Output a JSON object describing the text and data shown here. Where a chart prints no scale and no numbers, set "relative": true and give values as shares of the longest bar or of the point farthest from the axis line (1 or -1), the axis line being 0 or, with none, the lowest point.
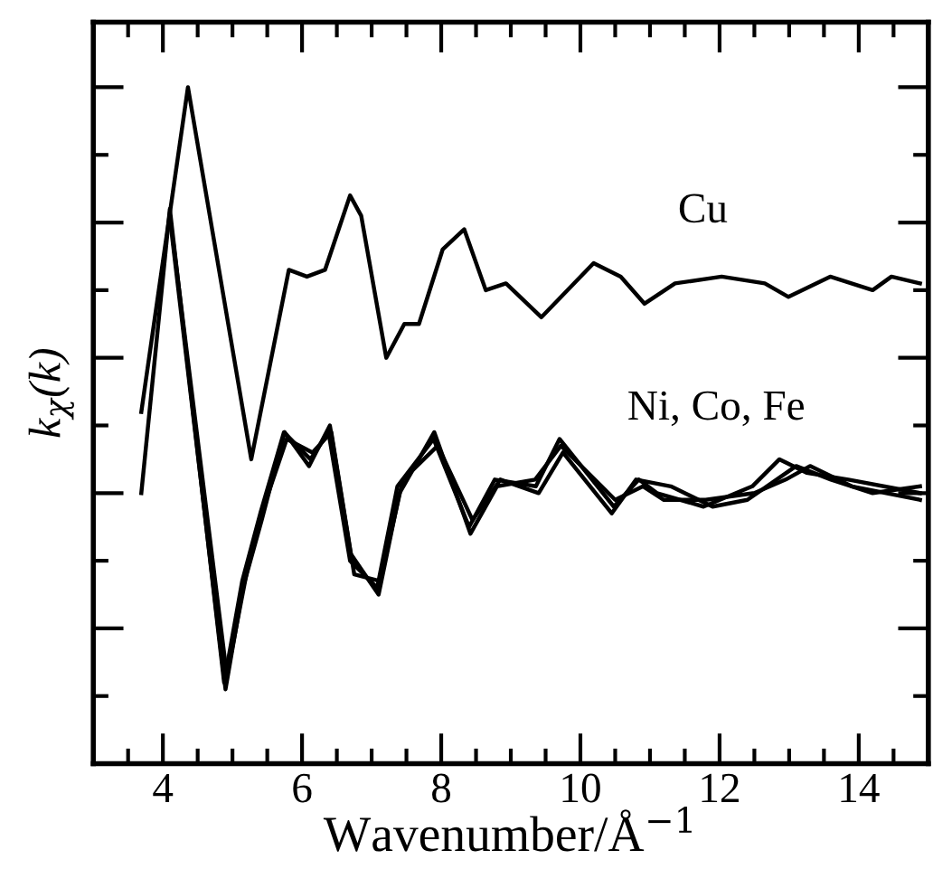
{
  "chart_data": {
    "type": "line",
    "relative": true,
    "xlabel": "Wavenumber/Å$^{−1}$",
    "ylabel": "k$_{χ}$(k)",
    "xlim": [
      3,
      15
    ],
    "xticks": [
      4,
      6,
      8,
      10,
      12,
      14
    ],
    "tick_labels": "x",
    "grid": false,
    "line_style": "solid",
    "marker": "none",
    "annotations": [
      "Cu",
      "Ni, Co, Fe"
    ],
    "series": [
      {
        "color": "#000000",
        "x": [
          3.69,
          4.36,
          5.27,
          5.81,
          6.07,
          6.33,
          6.69,
          6.85,
          7.21,
          7.47,
          7.68,
          8.02,
          8.33,
          8.64,
          8.93,
          9.44,
          10.19,
          10.58,
          10.92,
          11.36,
          12.03,
          12.65,
          12.99,
          13.59,
          14.2,
          14.47,
          14.88
        ],
        "values": [
          0.52,
          1.0,
          0.45,
          0.73,
          0.72,
          0.73,
          0.84,
          0.81,
          0.6,
          0.65,
          0.65,
          0.76,
          0.79,
          0.7,
          0.71,
          0.66,
          0.74,
          0.72,
          0.68,
          0.71,
          0.72,
          0.71,
          0.69,
          0.72,
          0.7,
          0.72,
          0.71
        ]
      },
      {
        "color": "#000000",
        "x": [
          3.69,
          4.1,
          4.88,
          5.14,
          5.4,
          5.74,
          6.12,
          6.38,
          6.69,
          7.08,
          7.37,
          7.89,
          8.4,
          8.77,
          9.36,
          9.7,
          10.48,
          10.84,
          11.1,
          11.77,
          12.47,
          12.86,
          13.25,
          13.85,
          14.88
        ],
        "values": [
          0.4,
          0.82,
          0.12,
          0.27,
          0.37,
          0.49,
          0.45,
          0.49,
          0.3,
          0.26,
          0.41,
          0.48,
          0.35,
          0.42,
          0.41,
          0.48,
          0.38,
          0.42,
          0.4,
          0.38,
          0.41,
          0.45,
          0.43,
          0.42,
          0.4
        ]
      },
      {
        "color": "#000000",
        "x": [
          4.12,
          4.9,
          5.15,
          5.42,
          5.75,
          6.1,
          6.4,
          6.7,
          7.1,
          7.4,
          7.9,
          8.42,
          8.8,
          9.35,
          9.72,
          10.5,
          10.9,
          11.2,
          11.8,
          12.5,
          12.95,
          13.3,
          13.9,
          14.88
        ],
        "values": [
          0.79,
          0.11,
          0.26,
          0.36,
          0.49,
          0.44,
          0.5,
          0.31,
          0.25,
          0.4,
          0.49,
          0.34,
          0.41,
          0.42,
          0.47,
          0.39,
          0.41,
          0.39,
          0.39,
          0.4,
          0.42,
          0.44,
          0.41,
          0.39
        ]
      },
      {
        "color": "#000000",
        "x": [
          4.15,
          4.92,
          5.2,
          5.45,
          5.78,
          6.15,
          6.42,
          6.75,
          7.12,
          7.45,
          7.95,
          8.45,
          8.85,
          9.4,
          9.75,
          10.45,
          10.8,
          11.3,
          11.9,
          12.4,
          13.1,
          13.6,
          14.2,
          14.88
        ],
        "values": [
          0.77,
          0.13,
          0.28,
          0.38,
          0.48,
          0.46,
          0.49,
          0.28,
          0.27,
          0.42,
          0.47,
          0.36,
          0.42,
          0.4,
          0.46,
          0.37,
          0.42,
          0.41,
          0.38,
          0.39,
          0.44,
          0.42,
          0.4,
          0.41
        ]
      }
    ]
  }
}
